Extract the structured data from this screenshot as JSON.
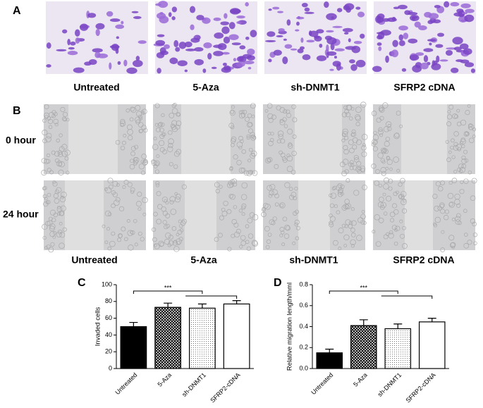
{
  "panels": {
    "a": {
      "label": "A",
      "columns": [
        "Untreated",
        "5-Aza",
        "sh-DNMT1",
        "SFRP2 cDNA"
      ]
    },
    "b": {
      "label": "B",
      "rows": [
        "0 hour",
        "24 hour"
      ],
      "columns": [
        "Untreated",
        "5-Aza",
        "sh-DNMT1",
        "SFRP2 cDNA"
      ]
    },
    "c": {
      "label": "C"
    },
    "d": {
      "label": "D"
    }
  },
  "chart_data": [
    {
      "type": "bar",
      "y_label": "Invaded cells",
      "categories": [
        "Untreated",
        "5-Aza",
        "sh-DNMT1",
        "SFRP2-cDNA"
      ],
      "values": [
        50,
        73,
        72,
        77
      ],
      "errors": [
        5,
        5,
        5,
        4
      ],
      "fills": [
        "#000000",
        "crosshatch",
        "dots",
        "#ffffff"
      ],
      "ylim": [
        0,
        100
      ],
      "yticks": [
        0,
        20,
        40,
        60,
        80,
        100
      ],
      "annotation": "***"
    },
    {
      "type": "bar",
      "y_label": "Relative migration length/mml",
      "categories": [
        "Untreated",
        "5-Aza",
        "sh-DNMT1",
        "SFRP2-cDNA"
      ],
      "values": [
        0.15,
        0.41,
        0.38,
        0.445
      ],
      "errors": [
        0.035,
        0.055,
        0.045,
        0.035
      ],
      "fills": [
        "#000000",
        "crosshatch",
        "dots",
        "#ffffff"
      ],
      "ylim": [
        0,
        0.8
      ],
      "yticks": [
        {
          "value": 0,
          "label": "0.0"
        },
        0.2,
        0.4,
        0.6,
        0.8
      ],
      "annotation": "***"
    }
  ]
}
